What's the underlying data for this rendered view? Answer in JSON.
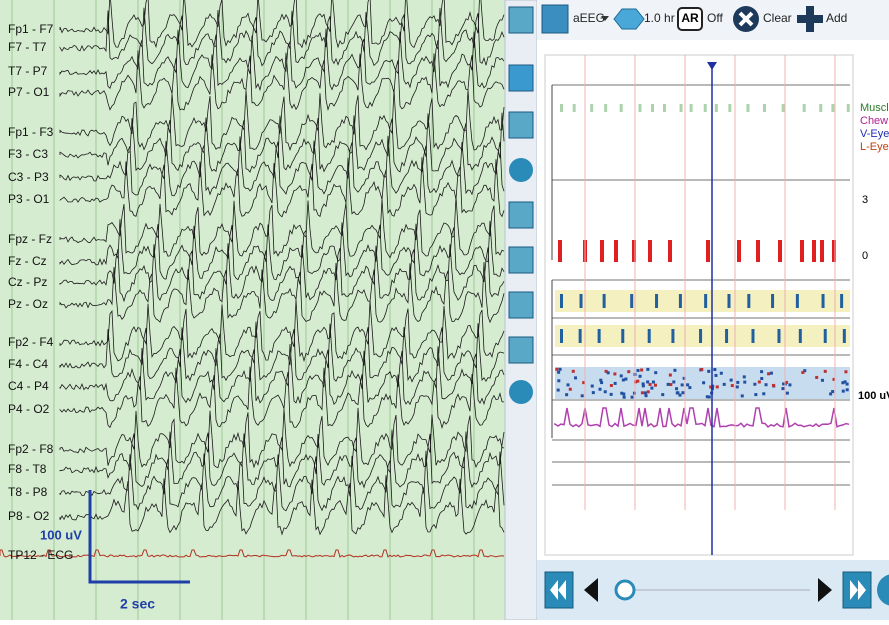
{
  "left_panel": {
    "channels": [
      "Fp1 - F7",
      "F7 - T7",
      "T7 - P7",
      "P7 - O1",
      "Fp1 - F3",
      "F3 - C3",
      "C3 - P3",
      "P3 - O1",
      "Fpz - Fz",
      "Fz - Cz",
      "Cz - Pz",
      "Pz - Oz",
      "Fp2 - F4",
      "F4 - C4",
      "C4 - P4",
      "P4 - O2",
      "Fp2 - F8",
      "F8 - T8",
      "T8 - P8",
      "P8 - O2"
    ],
    "ecg_channel": "TP12 - ECG",
    "scale": {
      "amplitude": "100 uV",
      "time": "2 sec"
    }
  },
  "toolbar": {
    "trend": "aEEG",
    "duration": "1.0 hr",
    "artifact_button": "AR",
    "artifact_state": "Off",
    "clear": "Clear",
    "add": "Add"
  },
  "trend_panel": {
    "artifact_labels": [
      "Muscle",
      "Chew",
      "V-Eye",
      "L-Eye"
    ],
    "seizure_scale": [
      "3",
      "0"
    ],
    "aeeg_scale": "100 uV"
  }
}
